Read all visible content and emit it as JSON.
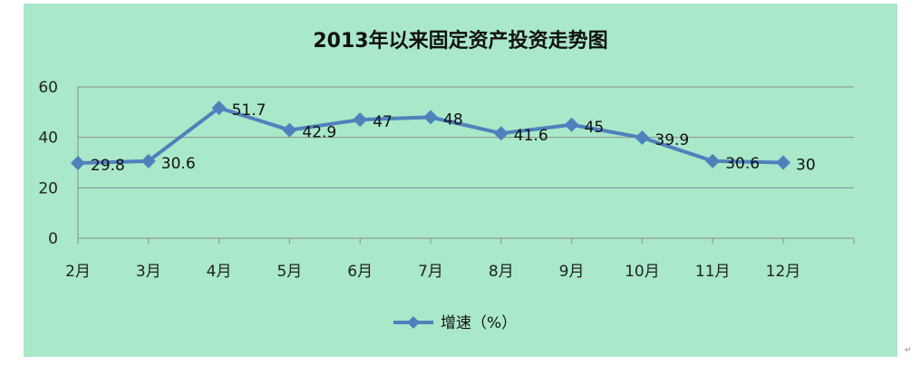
{
  "chart_data": {
    "type": "line",
    "title": "2013年以来固定资产投资走势图",
    "categories": [
      "2月",
      "3月",
      "4月",
      "5月",
      "6月",
      "7月",
      "8月",
      "9月",
      "10月",
      "11月",
      "12月"
    ],
    "series": [
      {
        "name": "增速（%）",
        "values": [
          29.8,
          30.6,
          51.7,
          42.9,
          47,
          48,
          41.6,
          45,
          39.9,
          30.6,
          30
        ],
        "labels": [
          "29.8",
          "30.6",
          "51.7",
          "42.9",
          "47",
          "48",
          "41.6",
          "45",
          "39.9",
          "30.6",
          "30"
        ]
      }
    ],
    "yticks": [
      "0",
      "20",
      "40",
      "60"
    ],
    "ylim": [
      0,
      60
    ],
    "grid": true,
    "legend": "bottom-center",
    "colors": {
      "background": "#a9e8c9",
      "line": "#4f81bd",
      "grid": "#8c8c8c",
      "border": "#4a7ebb"
    }
  }
}
